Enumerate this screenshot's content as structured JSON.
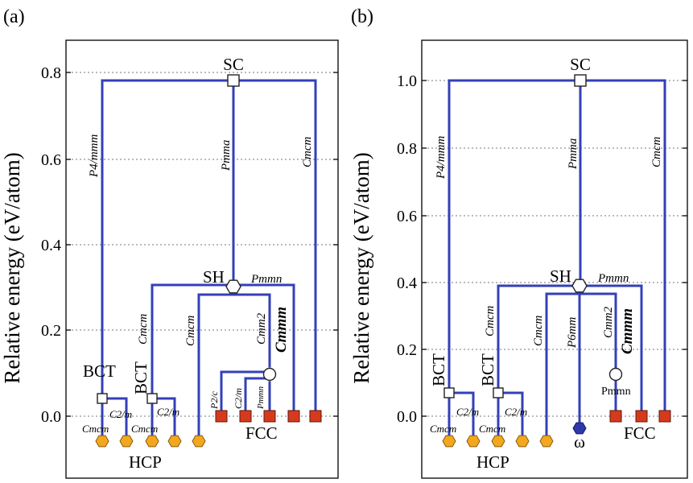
{
  "figure": {
    "panels": [
      {
        "id": "a",
        "panel_label": "(a)",
        "y_label": "Relative energy (eV/atom)",
        "y_ticks": [
          "0.0",
          "0.2",
          "0.4",
          "0.6",
          "0.8"
        ],
        "state_labels": {
          "sc": "SC",
          "sh": "SH",
          "bct1": "BCT",
          "bct2": "BCT",
          "fcc": "FCC",
          "hcp": "HCP"
        },
        "path_labels": {
          "p4mmm": "P4/mmm",
          "pmma": "Pmma",
          "cmcm_right": "Cmcm",
          "pmmn": "Pmmn",
          "cmcm_sh": "Cmcm",
          "cmcm_mid": "Cmcm",
          "cmm2": "Cmm2",
          "cmmm": "Cmmm",
          "c2m_1": "C2/m",
          "c2m_2": "C2/m",
          "cmcm_low1": "Cmcm",
          "cmcm_low2": "Cmcm",
          "p2c": "P2/c",
          "c2m_3": "C2/m",
          "pmmn_low": "Pmmn"
        }
      },
      {
        "id": "b",
        "panel_label": "(b)",
        "y_label": "Relative energy (eV/atom)",
        "y_ticks": [
          "0.0",
          "0.2",
          "0.4",
          "0.6",
          "0.8",
          "1.0"
        ],
        "state_labels": {
          "sc": "SC",
          "sh": "SH",
          "bct1": "BCT",
          "bct2": "BCT",
          "fcc": "FCC",
          "hcp": "HCP",
          "omega": "ω"
        },
        "path_labels": {
          "p4mmm": "P4/mmm",
          "pmma": "Pmma",
          "cmcm_right": "Cmcm",
          "pmmn": "Pmmn",
          "cmcm_sh": "Cmcm",
          "cmcm_mid": "Cmcm",
          "p6mm": "P6mm",
          "cmm2": "Cmm2",
          "cmmm": "Cmmm",
          "pmmn_low": "Pmmn",
          "c2m_1": "C2/m",
          "c2m_2": "C2/m",
          "cmcm_low1": "Cmcm",
          "cmcm_low2": "Cmcm"
        }
      }
    ],
    "colors": {
      "edge": "#3340b8",
      "fcc_marker": "#d63a1c",
      "hcp_marker": "#f2a81e",
      "omega_marker": "#2f3aa8"
    }
  }
}
